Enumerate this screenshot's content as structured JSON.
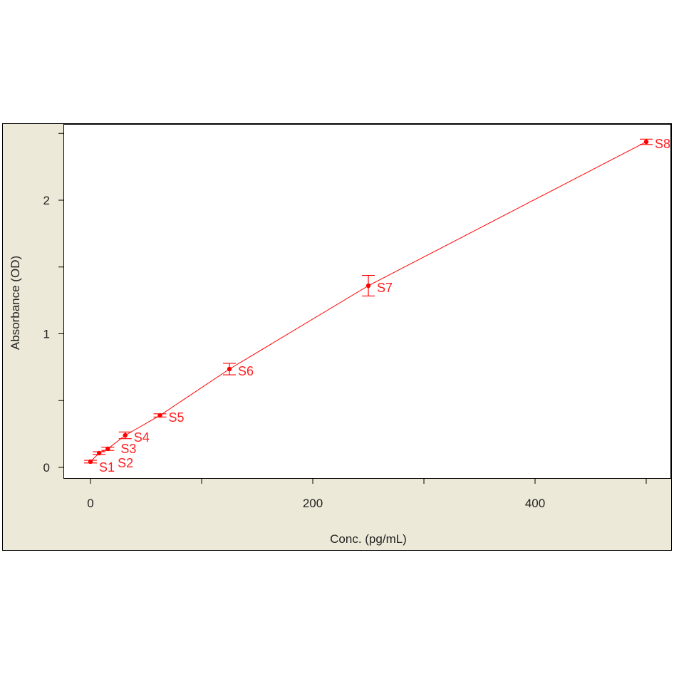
{
  "chart_data": {
    "type": "scatter",
    "title": "",
    "xlabel": "Conc. (pg/mL)",
    "ylabel": "Absorbance (OD)",
    "xlim": [
      -12,
      522
    ],
    "ylim": [
      -0.08,
      2.58
    ],
    "x_ticks": [
      0,
      100,
      200,
      300,
      400,
      500
    ],
    "x_tick_labels": [
      "0",
      "",
      "200",
      "",
      "400",
      ""
    ],
    "y_ticks": [
      0,
      0.5,
      1,
      1.5,
      2,
      2.5
    ],
    "y_tick_labels": [
      "0",
      "",
      "1",
      "",
      "2",
      ""
    ],
    "grid": false,
    "fit_line": true,
    "colors": {
      "series": "#ff0000",
      "panel": "#ece9d8",
      "plot": "#ffffff"
    },
    "series": [
      {
        "labels": [
          "S1",
          "S2",
          "S3",
          "S4",
          "S5",
          "S6",
          "S7",
          "S8"
        ],
        "x": [
          0,
          7.8,
          15.6,
          31.25,
          62.5,
          125,
          250,
          500
        ],
        "y": [
          0.043,
          0.107,
          0.139,
          0.24,
          0.389,
          0.736,
          1.36,
          2.437
        ],
        "error": [
          0.01,
          0.01,
          0.012,
          0.025,
          0.012,
          0.043,
          0.077,
          0.02
        ]
      }
    ]
  }
}
